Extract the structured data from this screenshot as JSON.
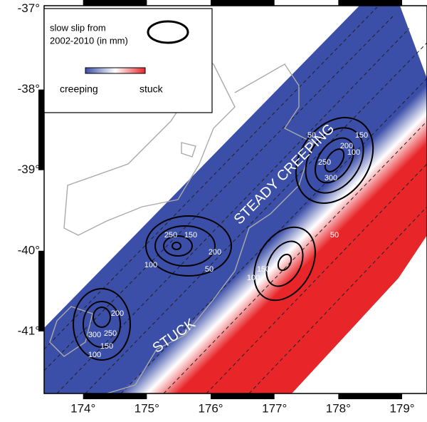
{
  "map": {
    "xlim": [
      173.39,
      179.39
    ],
    "ylim": [
      -41.77,
      -36.96
    ],
    "xticks": [
      {
        "value": 174,
        "label": "174°"
      },
      {
        "value": 175,
        "label": "175°"
      },
      {
        "value": 176,
        "label": "176°"
      },
      {
        "value": 177,
        "label": "177°"
      },
      {
        "value": 178,
        "label": "178°"
      },
      {
        "value": 179,
        "label": "179°"
      }
    ],
    "yticks": [
      {
        "value": -37,
        "label": "-37°"
      },
      {
        "value": -38,
        "label": "-38°"
      },
      {
        "value": -39,
        "label": "-39°"
      },
      {
        "value": -40,
        "label": "-40°"
      },
      {
        "value": -41,
        "label": "-41°"
      }
    ],
    "legend": {
      "title_lines": [
        "slow slip from",
        "2002-2010 (in mm)"
      ],
      "low": "creeping",
      "high": "stuck"
    },
    "annotations": [
      "STEADY CREEPING",
      "STUCK"
    ],
    "contour_labels": [
      50,
      150,
      200,
      100,
      250,
      300,
      250,
      150,
      200,
      50,
      100,
      100,
      150,
      50,
      200,
      300,
      250,
      150,
      100
    ]
  }
}
